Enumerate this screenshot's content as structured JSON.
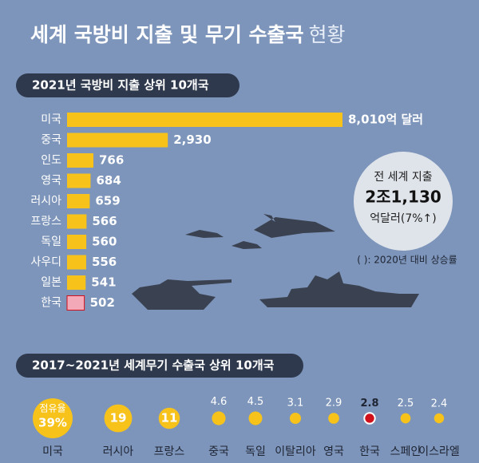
{
  "title": [
    "세계 국방비 지출 및 무기 수출국",
    "현황"
  ],
  "chart_data": [
    {
      "type": "bar",
      "orientation": "horizontal",
      "title": "2021년 국방비 지출 상위 10개국",
      "categories": [
        "미국",
        "중국",
        "인도",
        "영국",
        "러시아",
        "프랑스",
        "독일",
        "사우디",
        "일본",
        "한국"
      ],
      "values": [
        8010,
        2930,
        766,
        684,
        659,
        566,
        560,
        556,
        541,
        502
      ],
      "value_labels": [
        "8,010억 달러",
        "2,930",
        "766",
        "684",
        "659",
        "566",
        "560",
        "556",
        "541",
        "502"
      ],
      "colors": [
        "#f7c21a",
        "#f7c21a",
        "#f7c21a",
        "#f7c21a",
        "#f7c21a",
        "#f7c21a",
        "#f7c21a",
        "#f7c21a",
        "#f7c21a",
        "#f4a9b8"
      ],
      "xlim": [
        0,
        8010
      ],
      "annotations": [
        "전 세계 지출",
        "2조1,130",
        "억달러(7%↑)",
        "( ): 2020년 대비 상승률"
      ]
    },
    {
      "type": "bubble",
      "title": "2017~2021년 세계무기 수출국 상위 10개국",
      "categories": [
        "미국",
        "러시아",
        "프랑스",
        "중국",
        "독일",
        "이탈리아",
        "영국",
        "한국",
        "스페인",
        "이스라엘"
      ],
      "values": [
        39,
        19,
        11,
        4.6,
        4.5,
        3.1,
        2.9,
        2.8,
        2.5,
        2.4
      ],
      "value_labels": [
        "39%",
        "19",
        "11",
        "4.6",
        "4.5",
        "3.1",
        "2.9",
        "2.8",
        "2.5",
        "2.4"
      ],
      "colors": [
        "#f7c21a",
        "#f7c21a",
        "#f7c21a",
        "#f7c21a",
        "#f7c21a",
        "#f7c21a",
        "#f7c21a",
        "#d0111b",
        "#f7c21a",
        "#f7c21a"
      ],
      "annotations": [
        "점유율"
      ]
    }
  ]
}
